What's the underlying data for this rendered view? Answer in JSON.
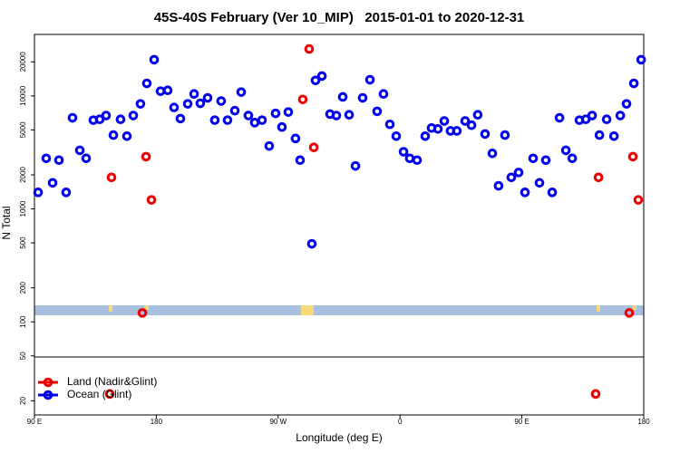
{
  "chart_data": {
    "type": "scatter",
    "title": "45S-40S February (Ver 10_MIP)   2015-01-01 to 2020-12-31",
    "x_label": "Longitude (deg E)",
    "y_label": "N Total",
    "log_y": true,
    "legend": "lower left",
    "xlim": [
      90,
      540
    ],
    "ylim": [
      15,
      35000
    ],
    "xticks": [
      {
        "value": 90,
        "label": "90 E"
      },
      {
        "value": 180,
        "label": "180"
      },
      {
        "value": 270,
        "label": "90 W"
      },
      {
        "value": 360,
        "label": "0"
      },
      {
        "value": 450,
        "label": "90 E"
      },
      {
        "value": 540,
        "label": "180"
      }
    ],
    "yticks": [
      20,
      50,
      100,
      200,
      500,
      1000,
      2000,
      5000,
      10000,
      20000
    ],
    "series": [
      {
        "name": "Ocean (Glint)",
        "color": "#0000ee",
        "x": [
          92.7,
          98.7,
          103.4,
          108.1,
          113.4,
          118.1,
          123.5,
          128.2,
          133.5,
          138.2,
          142.9,
          148.3,
          153.6,
          158.3,
          163.0,
          168.3,
          173.0,
          178.4,
          183.1,
          188.4,
          193.1,
          197.8,
          203.2,
          207.9,
          212.5,
          217.9,
          223.2,
          227.9,
          232.6,
          238.0,
          242.7,
          248.0,
          252.7,
          258.1,
          263.4,
          268.1,
          272.8,
          277.5,
          282.8,
          286.2,
          294.9,
          297.6,
          302.3,
          308.3,
          313.0,
          317.7,
          322.4,
          327.1,
          332.4,
          337.8,
          343.1,
          347.8,
          352.5,
          357.2,
          362.6,
          367.2,
          372.6,
          378.6,
          383.3,
          388.0,
          392.7,
          397.3,
          402.0,
          408.1,
          412.8,
          417.4,
          422.8,
          428.2,
          432.8,
          437.5,
          442.2,
          447.6,
          452.3,
          458.3,
          463.0,
          467.7,
          472.4,
          477.8,
          482.5,
          487.2,
          492.5,
          497.2,
          501.9,
          507.3,
          512.6,
          518.0,
          522.7,
          527.3,
          532.7,
          538.1
        ],
        "values": [
          1400,
          2800,
          1700,
          2700,
          1400,
          6400,
          3300,
          2800,
          6100,
          6200,
          6700,
          4500,
          6200,
          4400,
          6700,
          8500,
          12900,
          20900,
          11000,
          11200,
          7900,
          6300,
          8500,
          10400,
          8600,
          9600,
          6100,
          9000,
          6100,
          7400,
          10800,
          6700,
          5800,
          6100,
          3600,
          7000,
          5300,
          7200,
          4200,
          2700,
          490,
          13700,
          15000,
          6900,
          6700,
          9800,
          6800,
          2400,
          9600,
          13900,
          7300,
          10400,
          5600,
          4400,
          3200,
          2800,
          2700,
          4400,
          5200,
          5100,
          6000,
          4900,
          4900,
          6000,
          5500,
          6800,
          4600,
          3100,
          1600,
          4500,
          1900,
          2100,
          1400,
          2800,
          1700,
          2700,
          1400,
          6400,
          3300,
          2800,
          6100,
          6200,
          6700,
          4500,
          6200,
          4400,
          6700,
          8500,
          12900,
          20900
        ]
      },
      {
        "name": "Land (Nadir&Glint)",
        "color": "#ee0000",
        "x": [
          145.6,
          146.9,
          169.7,
          172.4,
          176.4,
          288.2,
          292.9,
          296.3,
          504.5,
          506.6,
          529.3,
          532.0,
          536.0
        ],
        "values": [
          23,
          1900,
          120,
          2900,
          1200,
          9300,
          26000,
          3500,
          23,
          1900,
          120,
          2900,
          1200
        ]
      }
    ]
  }
}
